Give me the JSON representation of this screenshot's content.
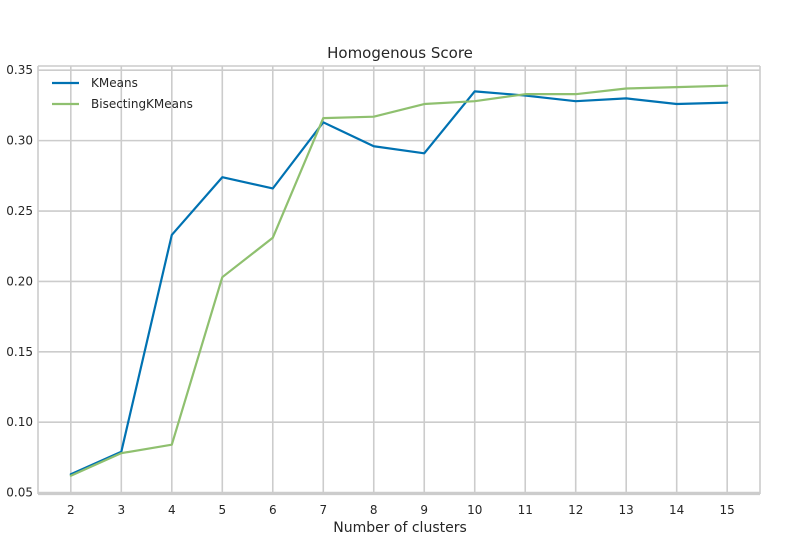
{
  "chart_data": {
    "type": "line",
    "title": "Homogenous Score",
    "xlabel": "Number of clusters",
    "ylabel": "",
    "x": [
      2,
      3,
      4,
      5,
      6,
      7,
      8,
      9,
      10,
      11,
      12,
      13,
      14,
      15
    ],
    "xlim": [
      1.35,
      15.65
    ],
    "ylim": [
      0.049,
      0.353
    ],
    "xticks": [
      2,
      3,
      4,
      5,
      6,
      7,
      8,
      9,
      10,
      11,
      12,
      13,
      14,
      15
    ],
    "yticks": [
      0.05,
      0.1,
      0.15,
      0.2,
      0.25,
      0.3,
      0.35
    ],
    "ytick_labels": [
      "0.05",
      "0.10",
      "0.15",
      "0.20",
      "0.25",
      "0.30",
      "0.35"
    ],
    "grid": true,
    "legend_position": "top-left",
    "series": [
      {
        "name": "KMeans",
        "color": "#0072b2",
        "values": [
          0.063,
          0.079,
          0.233,
          0.274,
          0.266,
          0.313,
          0.296,
          0.291,
          0.335,
          0.332,
          0.328,
          0.33,
          0.326,
          0.327
        ]
      },
      {
        "name": "BisectingKMeans",
        "color": "#8fc06f",
        "values": [
          0.062,
          0.078,
          0.084,
          0.203,
          0.231,
          0.316,
          0.317,
          0.326,
          0.328,
          0.333,
          0.333,
          0.337,
          0.338,
          0.339
        ]
      }
    ]
  }
}
